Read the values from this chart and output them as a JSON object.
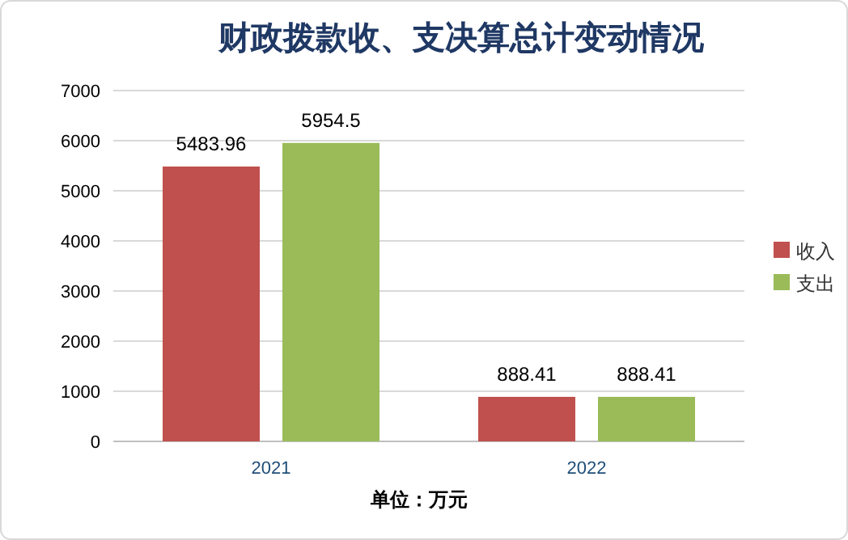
{
  "chart_data": {
    "type": "bar",
    "title": "财政拨款收、支决算总计变动情况",
    "xlabel": "单位：万元",
    "categories": [
      "2021",
      "2022"
    ],
    "series": [
      {
        "name": "收入",
        "color": "#c0504d",
        "values": [
          5483.96,
          888.41
        ]
      },
      {
        "name": "支出",
        "color": "#9bbb59",
        "values": [
          5954.5,
          888.41
        ]
      }
    ],
    "ylim": [
      0,
      7000
    ],
    "yticks": [
      0,
      1000,
      2000,
      3000,
      4000,
      5000,
      6000,
      7000
    ],
    "grid": "y",
    "legend": "right",
    "data_labels": true
  }
}
